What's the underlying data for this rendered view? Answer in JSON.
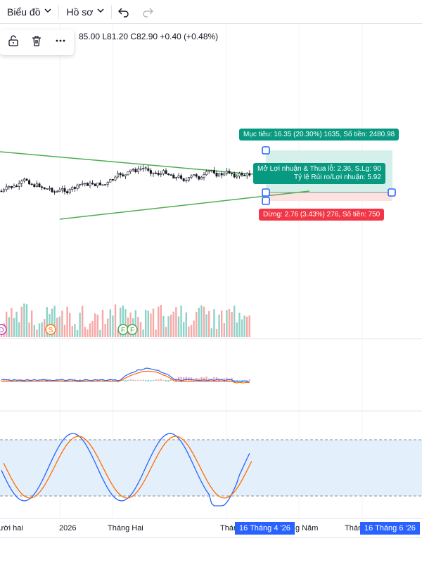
{
  "toolbar": {
    "chart_menu": "Biểu đồ",
    "profile_menu": "Hồ sơ"
  },
  "floating_toolbar": {
    "icons": [
      "unlock-icon",
      "trash-icon",
      "more-icon"
    ]
  },
  "ohlc": {
    "text": "85.00  L81.20  C82.90  +0.40 (+0.48%)"
  },
  "position_tool": {
    "target_label": "Mục tiêu: 16.35 (20.30%) 1635, Số tiền: 2480.98",
    "pnl_label_line1": "Mở Lợi nhuận & Thua lỗ: 2.36, S.Lg: 90",
    "pnl_label_line2": "Tỷ lệ Rủi ro/Lợi nhuận: 5.92",
    "stop_label": "Dừng: 2.76 (3.43%) 276, Số tiền: 750"
  },
  "events": [
    "D",
    "S",
    "F",
    "F"
  ],
  "time_axis": {
    "labels": [
      "ười hai",
      "2026",
      "Tháng Hai",
      "Thán",
      "g Năm",
      "Thán"
    ],
    "badge_start": "16 Tháng 4 '26",
    "badge_end": "16 Tháng 6 '26"
  },
  "colors": {
    "up": "#26a69a",
    "down": "#ef5350",
    "trendline": "#4caf50",
    "target_fill": "#d5f0ea",
    "stop_fill": "#fde2e1",
    "macd": "#2962ff",
    "signal": "#ff6d00",
    "badge": "#2962ff"
  }
}
